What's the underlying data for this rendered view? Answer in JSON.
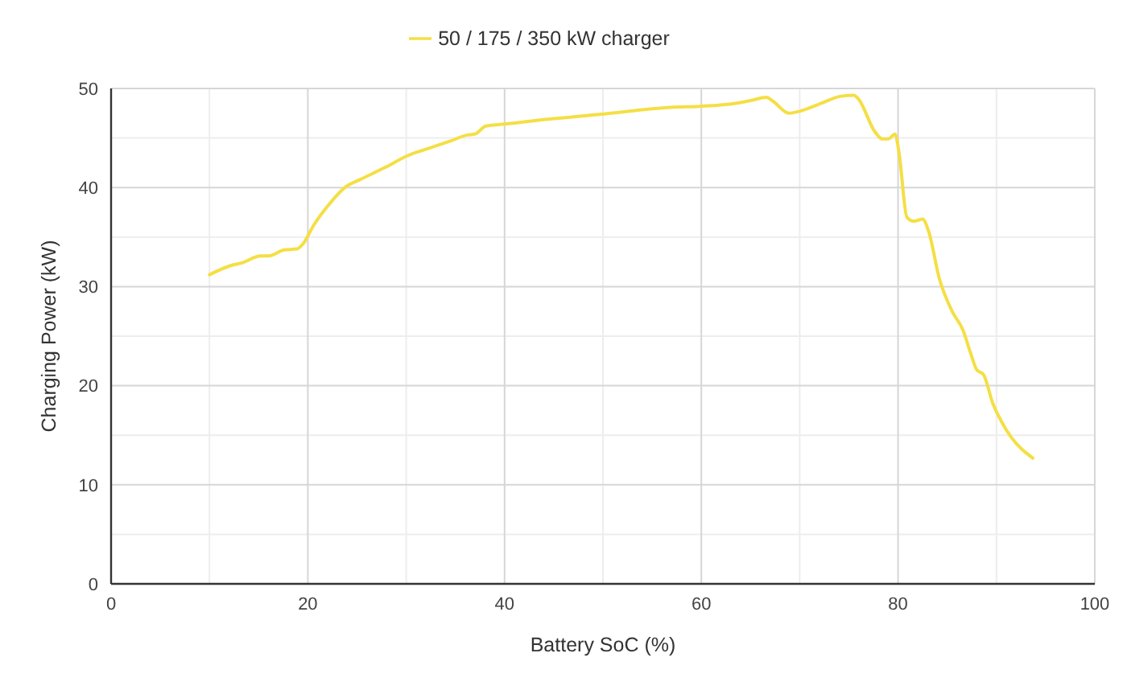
{
  "chart_data": {
    "type": "line",
    "xlabel": "Battery SoC (%)",
    "ylabel": "Charging Power (kW)",
    "x": [
      10,
      12.1,
      13.3,
      15.2,
      16,
      17.6,
      18.9,
      19.5,
      20.6,
      22,
      23.9,
      25.3,
      28,
      30.1,
      31.8,
      34.5,
      36.2,
      37,
      38.1,
      40,
      44.4,
      49.8,
      56.9,
      59.9,
      63.5,
      65.1,
      66.6,
      67.3,
      68.9,
      70,
      72.2,
      74.1,
      75.5,
      76,
      77.6,
      78.4,
      79,
      79.7,
      80.1,
      80.9,
      81.6,
      82.5,
      83.1,
      84.2,
      85.5,
      86.6,
      87.4,
      88,
      88.7,
      89.6,
      90.5,
      91.5,
      93.7
    ],
    "series": [
      {
        "name": "50 / 175 / 350 kW charger",
        "color": "#f4df45",
        "values": [
          31.2,
          32.1,
          32.4,
          33.1,
          33.1,
          33.7,
          33.8,
          34.3,
          36.2,
          38.1,
          40.1,
          40.8,
          42.1,
          43.2,
          43.8,
          44.7,
          45.3,
          45.4,
          46.2,
          46.4,
          46.9,
          47.4,
          48.1,
          48.2,
          48.5,
          48.8,
          49.1,
          48.7,
          47.5,
          47.7,
          48.5,
          49.2,
          49.3,
          48.9,
          45.7,
          44.9,
          44.9,
          45.4,
          43.5,
          37,
          36.6,
          36.8,
          35.6,
          30.8,
          27.5,
          25.6,
          23.2,
          21.6,
          21.1,
          18.3,
          16.4,
          14.8,
          12.7
        ]
      }
    ],
    "xlim": [
      0,
      100
    ],
    "xticks": [
      0,
      {
        "value": 10,
        "label": null
      },
      20,
      {
        "value": 30,
        "label": null
      },
      40,
      {
        "value": 50,
        "label": null
      },
      60,
      {
        "value": 70,
        "label": null
      },
      80,
      {
        "value": 90,
        "label": null
      },
      100
    ],
    "ylim": [
      0,
      50
    ],
    "yticks": [
      0,
      {
        "value": 5,
        "label": null
      },
      10,
      {
        "value": 15,
        "label": null
      },
      20,
      {
        "value": 25,
        "label": null
      },
      30,
      {
        "value": 35,
        "label": null
      },
      40,
      {
        "value": 45,
        "label": null
      },
      50
    ],
    "grid": true,
    "legend": "top",
    "marker": "none",
    "line_style": "solid"
  }
}
